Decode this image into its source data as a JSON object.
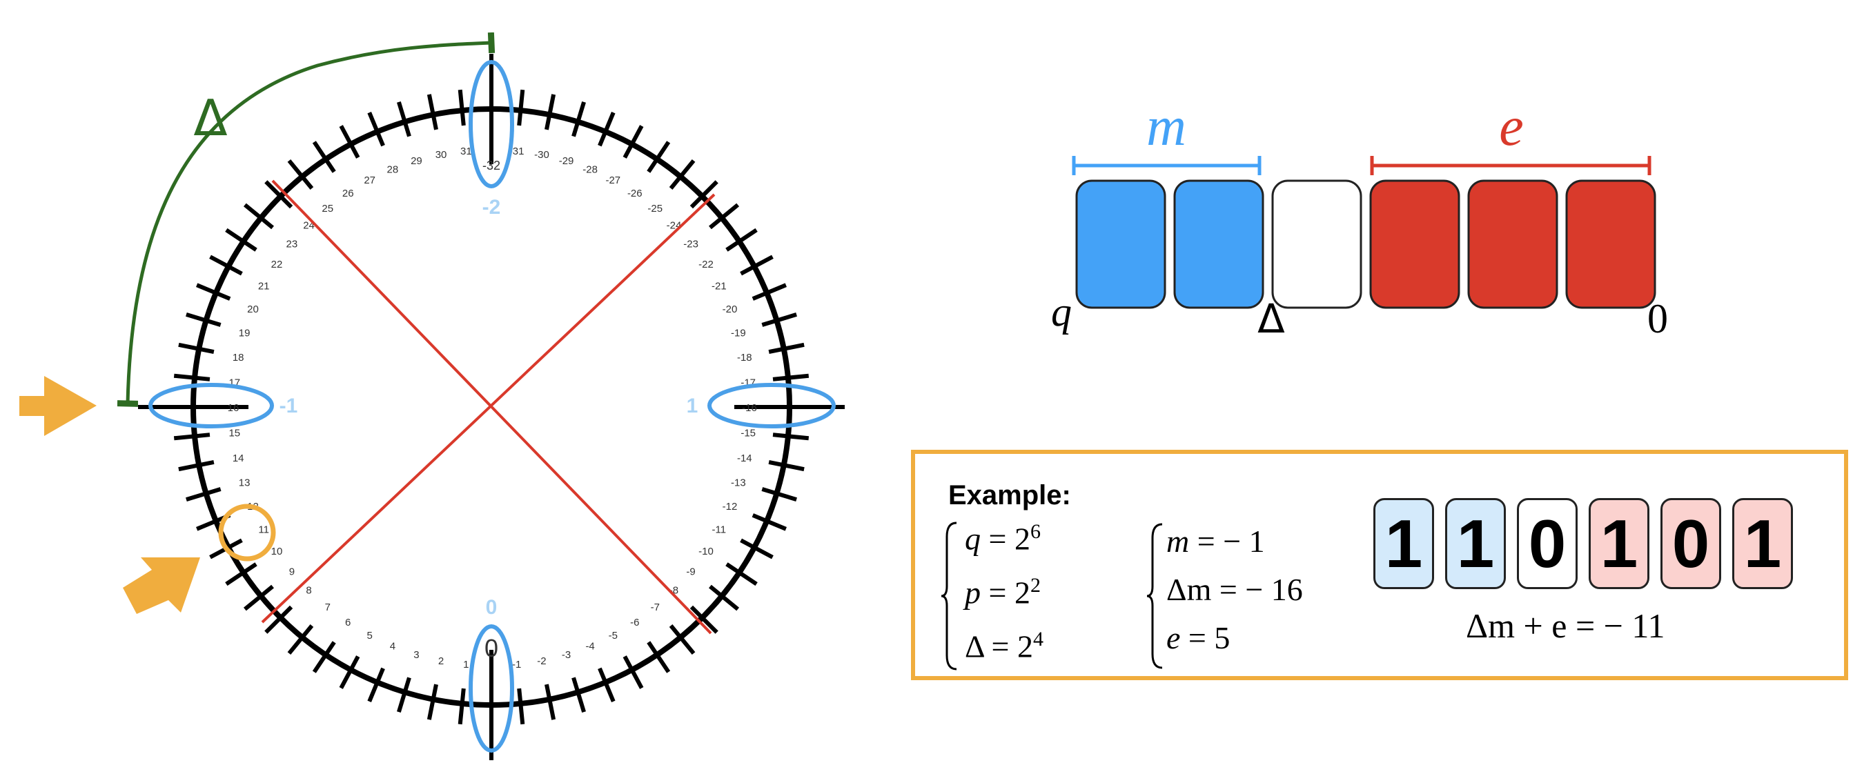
{
  "dial": {
    "arc_label": "Δ",
    "outer_labels": {
      "top": "-2",
      "left": "-1",
      "right": "1",
      "bottom": "0"
    },
    "tick_numbers": {
      "top_center": "-32",
      "ccw_from_bottom": [
        "-1",
        "-2",
        "-3",
        "-4",
        "-5",
        "-6",
        "-7",
        "-8",
        "-9",
        "-10",
        "-11",
        "-12",
        "-13",
        "-14",
        "-15",
        "-16",
        "-17",
        "-18",
        "-19",
        "-20",
        "-21",
        "-22",
        "-23",
        "-24",
        "-25",
        "-26",
        "-27",
        "-28",
        "-29",
        "-30",
        "-31"
      ],
      "cw_from_bottom": [
        "1",
        "2",
        "3",
        "4",
        "5",
        "6",
        "7",
        "8",
        "9",
        "10",
        "11",
        "12",
        "13",
        "14",
        "15",
        "16",
        "17",
        "18",
        "19",
        "20",
        "21",
        "22",
        "23",
        "24",
        "25",
        "26",
        "27",
        "28",
        "29",
        "30",
        "31"
      ],
      "top_near": "-32",
      "bottom_near": "0"
    },
    "colors": {
      "ring": "#000000",
      "highlight": "#4a9fe8",
      "light_label": "#a9d3f5",
      "arc": "#2e6b22",
      "cross": "#d9392b",
      "arrow": "#f0ad3e"
    }
  },
  "bits": {
    "m_label": "m",
    "e_label": "e",
    "q_label": "q",
    "delta_label": "Δ",
    "zero_label": "0",
    "boxes": [
      "m",
      "m",
      "p",
      "e",
      "e",
      "e"
    ],
    "colors": {
      "m": "#44a2f7",
      "e": "#d93a2b",
      "p": "#ffffff"
    }
  },
  "example": {
    "title": "Example:",
    "params": [
      {
        "var": "q",
        "base": "2",
        "exp": "6"
      },
      {
        "var": "p",
        "base": "2",
        "exp": "2"
      },
      {
        "var": "Δ",
        "base": "2",
        "exp": "4"
      }
    ],
    "values": [
      {
        "lhs": "m",
        "rhs": "− 1"
      },
      {
        "lhs": "Δm",
        "rhs": "− 16"
      },
      {
        "lhs": "e",
        "rhs": "5"
      }
    ],
    "digits": [
      {
        "d": "1",
        "kind": "m"
      },
      {
        "d": "1",
        "kind": "m"
      },
      {
        "d": "0",
        "kind": "p"
      },
      {
        "d": "1",
        "kind": "e"
      },
      {
        "d": "0",
        "kind": "e"
      },
      {
        "d": "1",
        "kind": "e"
      }
    ],
    "sum_lhs": "Δm + e",
    "sum_rhs": "− 11"
  }
}
